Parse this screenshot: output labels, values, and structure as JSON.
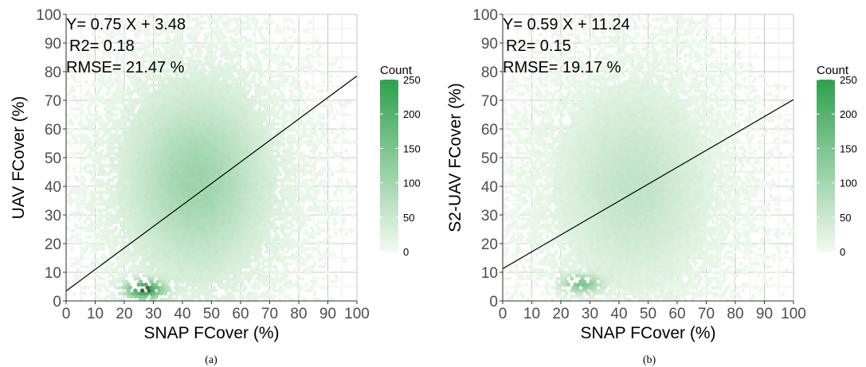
{
  "chart_data": [
    {
      "type": "hexbin",
      "panel_label": "(a)",
      "xlabel": "SNAP FCover (%)",
      "ylabel": "UAV FCover (%)",
      "xlim": [
        0,
        100
      ],
      "ylim": [
        0,
        100
      ],
      "xticks": [
        "0",
        "10",
        "20",
        "30",
        "40",
        "50",
        "60",
        "70",
        "80",
        "90",
        "100"
      ],
      "yticks": [
        "0",
        "10",
        "20",
        "30",
        "40",
        "50",
        "60",
        "70",
        "80",
        "90",
        "100"
      ],
      "regression": {
        "slope": 0.75,
        "intercept": 3.48
      },
      "annotations": [
        "Y= 0.75 X + 3.48",
        "R2= 0.18",
        "RMSE= 21.47 %"
      ],
      "legend": {
        "title": "Count",
        "ticks": [
          "250",
          "200",
          "150",
          "100",
          "50",
          "0"
        ],
        "range": [
          0,
          250
        ],
        "position": "right"
      },
      "colors": {
        "low": "#f2faf0",
        "high": "#2ea14d",
        "peak": "#555555"
      },
      "grid": true,
      "density": {
        "center": [
          45,
          42
        ],
        "hotspot": [
          27,
          4
        ],
        "hotspot_count": 250
      }
    },
    {
      "type": "hexbin",
      "panel_label": "(b)",
      "xlabel": "SNAP FCover (%)",
      "ylabel": "S2-UAV FCover (%)",
      "xlim": [
        0,
        100
      ],
      "ylim": [
        0,
        100
      ],
      "xticks": [
        "0",
        "10",
        "20",
        "30",
        "40",
        "50",
        "60",
        "70",
        "80",
        "90",
        "100"
      ],
      "yticks": [
        "0",
        "10",
        "20",
        "30",
        "40",
        "50",
        "60",
        "70",
        "80",
        "90",
        "100"
      ],
      "regression": {
        "slope": 0.59,
        "intercept": 11.24
      },
      "annotations": [
        "Y= 0.59 X + 11.24",
        "R2= 0.15",
        "RMSE= 19.17 %"
      ],
      "legend": {
        "title": "Count",
        "ticks": [
          "250",
          "200",
          "150",
          "100",
          "50",
          "0"
        ],
        "range": [
          0,
          250
        ],
        "position": "right"
      },
      "colors": {
        "low": "#f2faf0",
        "high": "#2ea14d",
        "peak": "#4aa85c"
      },
      "grid": true,
      "density": {
        "center": [
          45,
          40
        ],
        "hotspot": [
          27,
          6
        ],
        "hotspot_count": 130
      }
    }
  ]
}
